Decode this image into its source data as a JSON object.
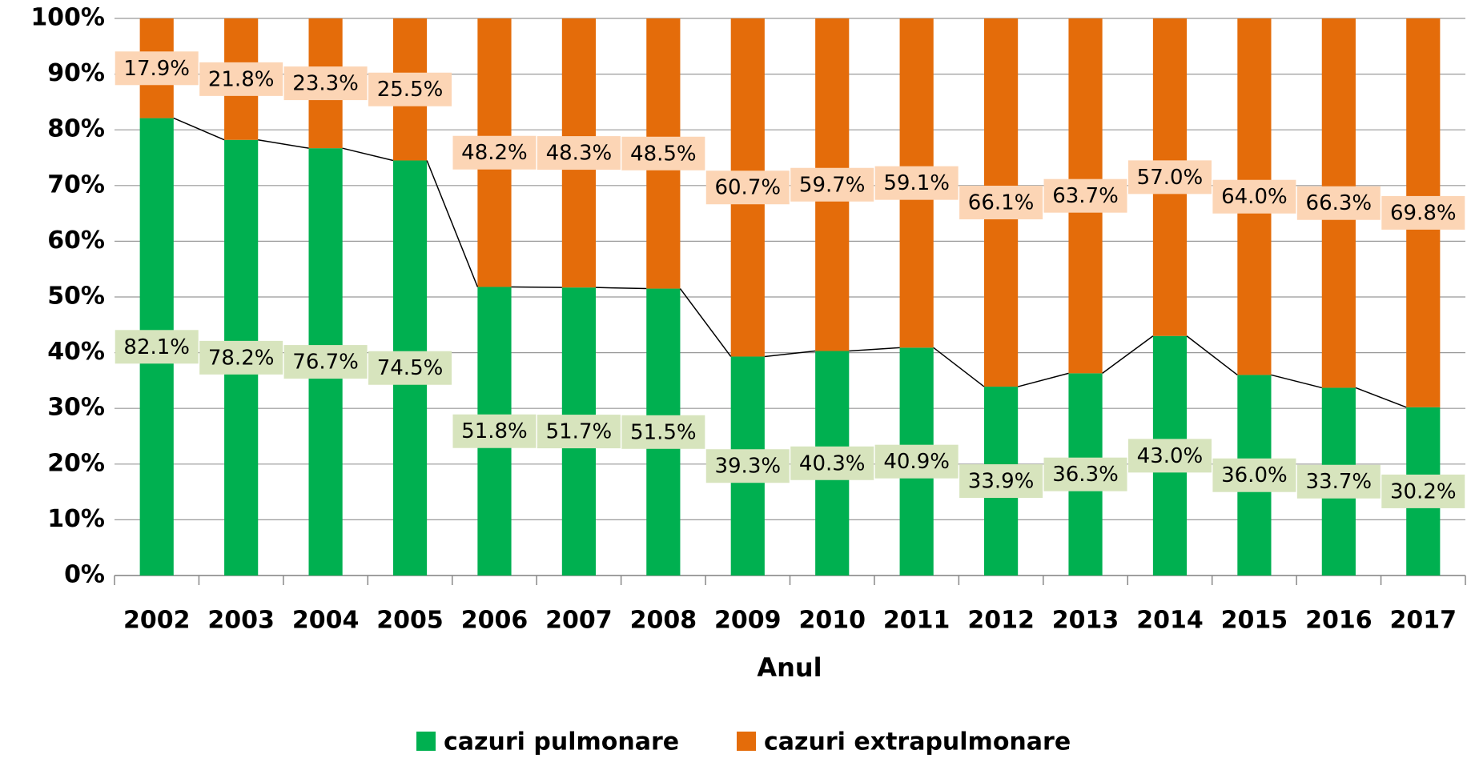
{
  "chart_data": {
    "type": "stacked_bar_100",
    "x_label": "Anul",
    "categories": [
      "2002",
      "2003",
      "2004",
      "2005",
      "2006",
      "2007",
      "2008",
      "2009",
      "2010",
      "2011",
      "2012",
      "2013",
      "2014",
      "2015",
      "2016",
      "2017"
    ],
    "series": [
      {
        "name": "cazuri pulmonare",
        "color": "#00b050",
        "label_background": "#d7e4bd",
        "values": [
          82.1,
          78.2,
          76.7,
          74.5,
          51.8,
          51.7,
          51.5,
          39.3,
          40.3,
          40.9,
          33.9,
          36.3,
          43.0,
          36.0,
          33.7,
          30.2
        ],
        "value_labels": [
          "82.1%",
          "78.2%",
          "76.7%",
          "74.5%",
          "51.8%",
          "51.7%",
          "51.5%",
          "39.3%",
          "40.3%",
          "40.9%",
          "33.9%",
          "36.3%",
          "43.0%",
          "36.0%",
          "33.7%",
          "30.2%"
        ]
      },
      {
        "name": "cazuri extrapulmonare",
        "color": "#e46c0a",
        "label_background": "#fcd5b5",
        "values": [
          17.9,
          21.8,
          23.3,
          25.5,
          48.2,
          48.3,
          48.5,
          60.7,
          59.7,
          59.1,
          66.1,
          63.7,
          57.0,
          64.0,
          66.3,
          69.8
        ],
        "value_labels": [
          "17.9%",
          "21.8%",
          "23.3%",
          "25.5%",
          "48.2%",
          "48.3%",
          "48.5%",
          "60.7%",
          "59.7%",
          "59.1%",
          "66.1%",
          "63.7%",
          "57.0%",
          "64.0%",
          "66.3%",
          "69.8%"
        ]
      }
    ],
    "series_lines": true,
    "ylim": [
      0,
      100
    ],
    "yticks": [
      {
        "value": 0,
        "label": "0%"
      },
      {
        "value": 10,
        "label": "10%"
      },
      {
        "value": 20,
        "label": "20%"
      },
      {
        "value": 30,
        "label": "30%"
      },
      {
        "value": 40,
        "label": "40%"
      },
      {
        "value": 50,
        "label": "50%"
      },
      {
        "value": 60,
        "label": "60%"
      },
      {
        "value": 70,
        "label": "70%"
      },
      {
        "value": 80,
        "label": "80%"
      },
      {
        "value": 90,
        "label": "90%"
      },
      {
        "value": 100,
        "label": "100%"
      }
    ],
    "grid": true,
    "legend": "bottom"
  }
}
